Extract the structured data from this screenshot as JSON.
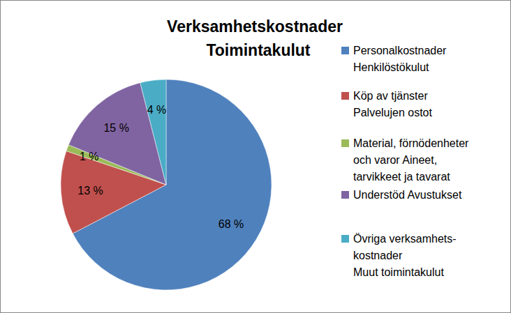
{
  "chart_data": {
    "type": "pie",
    "title": "Verksamhetskostnader\nToimintakulut",
    "categories": [
      "Personalkostnader\nHenkilöstökulut",
      "Köp av tjänster\nPalvelujen ostot",
      "Material, förnödenheter\noch varor Aineet,\ntarvikkeet ja tavarat",
      "Understöd Avustukset",
      "Övriga verksamhets-\nkostnader\nMuut toimintakulut"
    ],
    "values": [
      68,
      13,
      1,
      15,
      4
    ],
    "value_labels": [
      "68 %",
      "13 %",
      "1 %",
      "15 %",
      "4 %"
    ],
    "colors": [
      "#4f81bd",
      "#c0504d",
      "#9bbb59",
      "#8064a2",
      "#4bacc6"
    ],
    "data_labels": true,
    "legend": "right"
  }
}
